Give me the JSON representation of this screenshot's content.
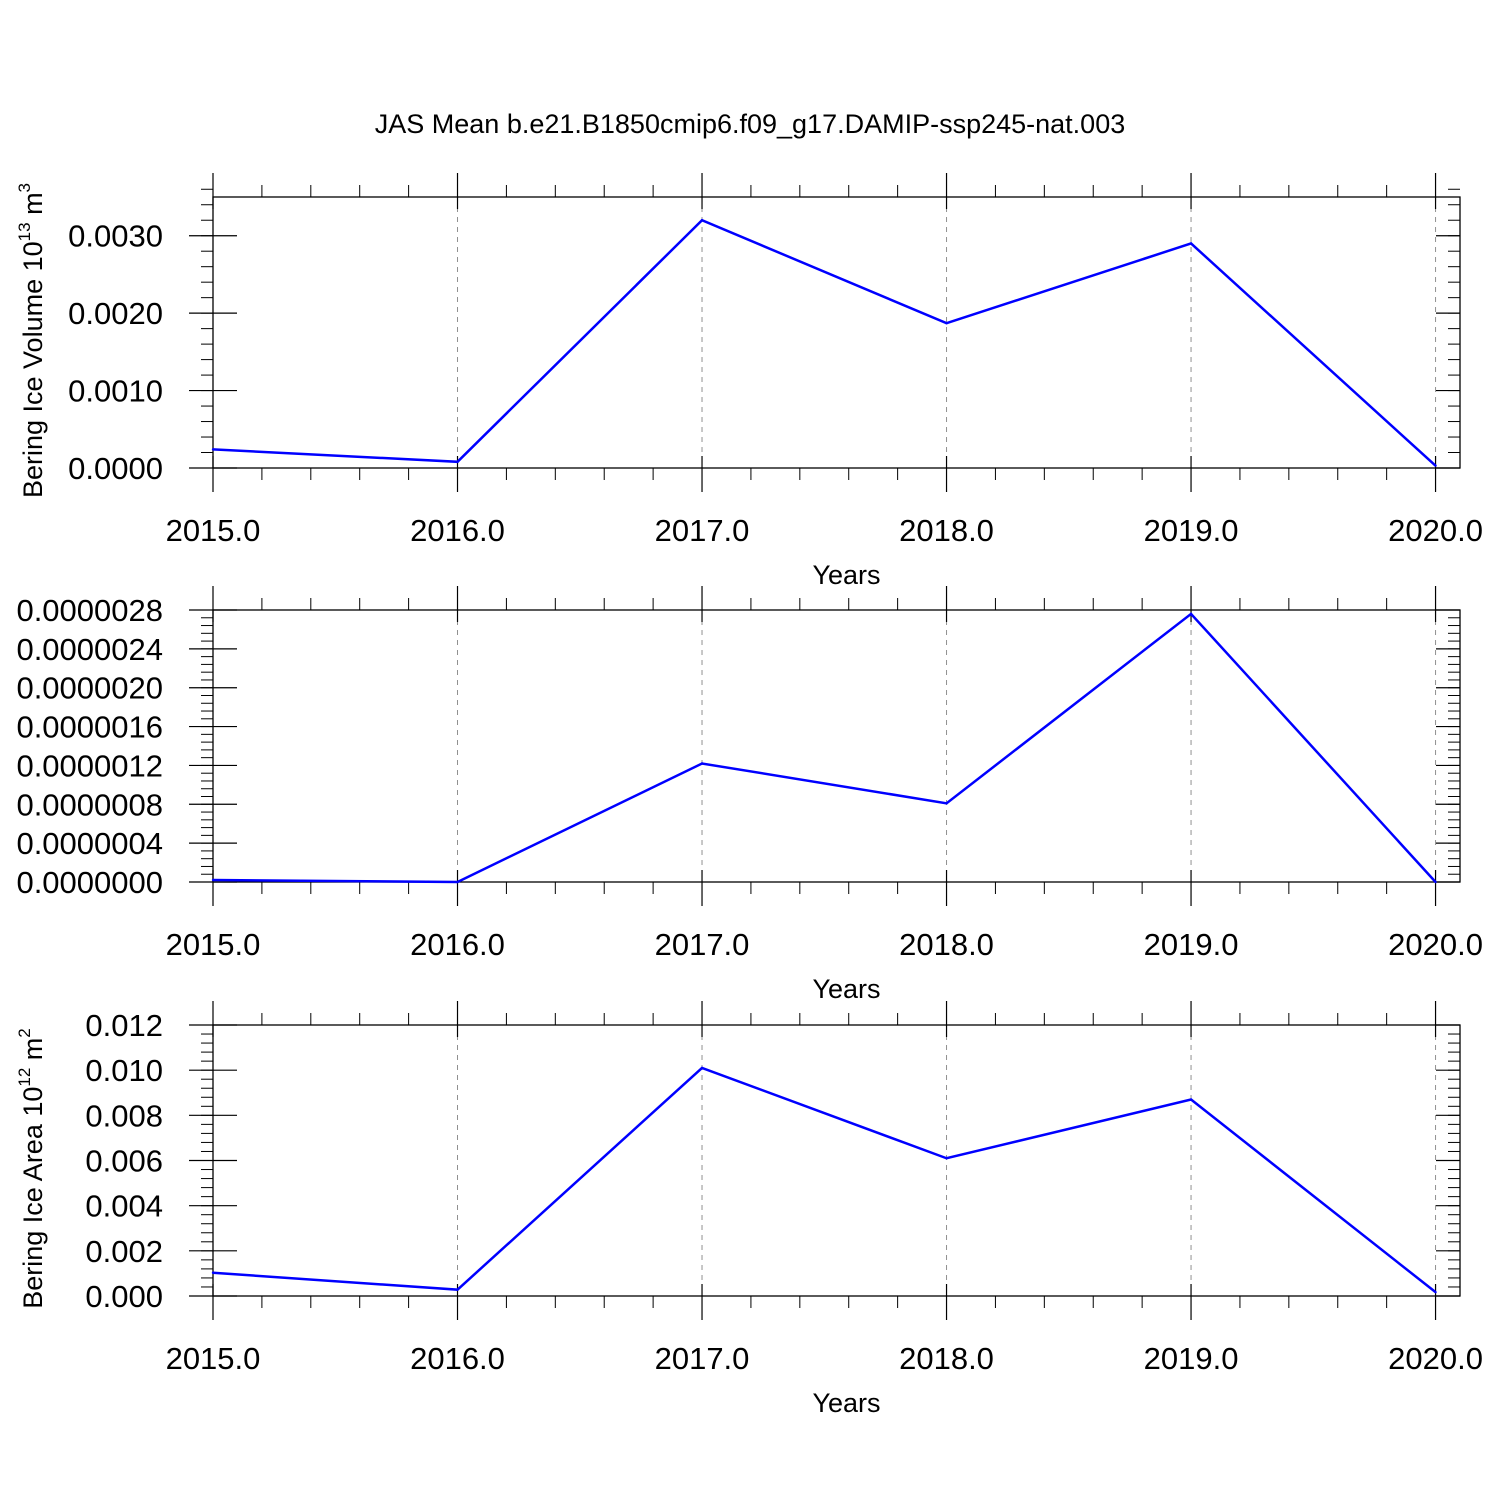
{
  "figure": {
    "title": "JAS Mean b.e21.B1850cmip6.f09_g17.DAMIP-ssp245-nat.003"
  },
  "chart_data": [
    {
      "type": "line",
      "ylabel": {
        "main": "Bering Ice Volume 10",
        "exp": "13",
        "unit": " m",
        "unit_exp": "3"
      },
      "xlabel": "Years",
      "x": [
        2015,
        2016,
        2017,
        2018,
        2019,
        2020
      ],
      "xticks": [
        "2015.0",
        "2016.0",
        "2017.0",
        "2018.0",
        "2019.0",
        "2020.0"
      ],
      "xlim": [
        2015,
        2020.1
      ],
      "ylim": [
        0,
        0.0035
      ],
      "yticks": [
        0,
        0.001,
        0.002,
        0.003
      ],
      "yticklabels": [
        "0.0000",
        "0.0010",
        "0.0020",
        "0.0030"
      ],
      "yminor_step": 0.0002,
      "grid": "vertical-dashed",
      "series": [
        {
          "color": "#0000ff",
          "values": [
            0.00024,
            8e-05,
            0.0032,
            0.00187,
            0.0029,
            3e-05
          ]
        }
      ]
    },
    {
      "type": "line",
      "ylabel": null,
      "xlabel": "Years",
      "x": [
        2015,
        2016,
        2017,
        2018,
        2019,
        2020
      ],
      "xticks": [
        "2015.0",
        "2016.0",
        "2017.0",
        "2018.0",
        "2019.0",
        "2020.0"
      ],
      "xlim": [
        2015,
        2020.1
      ],
      "ylim": [
        0,
        2.8e-06
      ],
      "yticks": [
        0,
        4e-07,
        8e-07,
        1.2e-06,
        1.6e-06,
        2e-06,
        2.4e-06,
        2.8e-06
      ],
      "yticklabels": [
        "0.0000000",
        "0.0000004",
        "0.0000008",
        "0.0000012",
        "0.0000016",
        "0.0000020",
        "0.0000024",
        "0.0000028"
      ],
      "yminor_step": 8e-08,
      "grid": "vertical-dashed",
      "series": [
        {
          "color": "#0000ff",
          "values": [
            2e-08,
            0.0,
            1.22e-06,
            8.1e-07,
            2.76e-06,
            0.0
          ]
        }
      ]
    },
    {
      "type": "line",
      "ylabel": {
        "main": "Bering Ice Area 10",
        "exp": "12",
        "unit": " m",
        "unit_exp": "2"
      },
      "xlabel": "Years",
      "x": [
        2015,
        2016,
        2017,
        2018,
        2019,
        2020
      ],
      "xticks": [
        "2015.0",
        "2016.0",
        "2017.0",
        "2018.0",
        "2019.0",
        "2020.0"
      ],
      "xlim": [
        2015,
        2020.1
      ],
      "ylim": [
        0,
        0.012
      ],
      "yticks": [
        0,
        0.002,
        0.004,
        0.006,
        0.008,
        0.01,
        0.012
      ],
      "yticklabels": [
        "0.000",
        "0.002",
        "0.004",
        "0.006",
        "0.008",
        "0.010",
        "0.012"
      ],
      "yminor_step": 0.0004,
      "grid": "vertical-dashed",
      "series": [
        {
          "color": "#0000ff",
          "values": [
            0.00103,
            0.00028,
            0.0101,
            0.0061,
            0.0087,
            0.00017
          ]
        }
      ]
    }
  ]
}
